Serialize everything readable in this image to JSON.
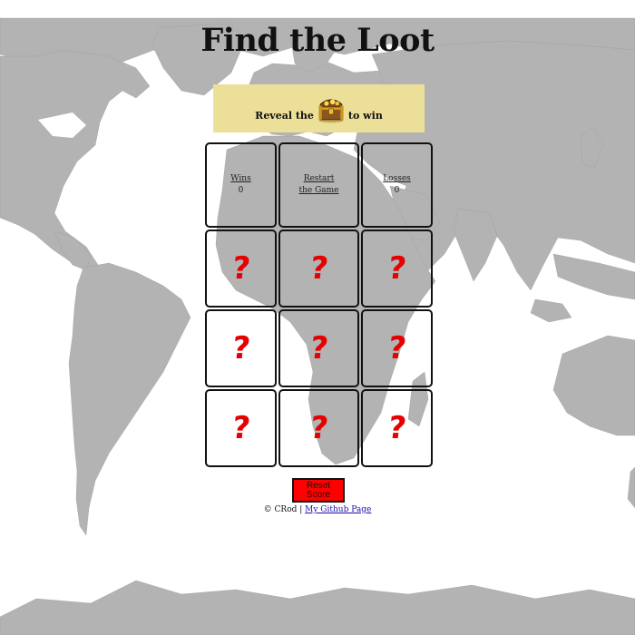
{
  "game": {
    "title": "Find the Loot",
    "instruction_before": "Reveal the",
    "instruction_after": "to win",
    "prize_icon": "treasure-chest-icon",
    "door_icon": "question-mark-icon",
    "door_symbol": "?",
    "door_color": "#e60000"
  },
  "scoreboard": {
    "wins_label": "Wins",
    "wins_value": "0",
    "restart_line1": "Restart",
    "restart_line2": "the Game",
    "losses_label": "Losses",
    "losses_value": "0"
  },
  "controls": {
    "reset_label": "Reset Score",
    "reset_color": "#ff0000"
  },
  "footer": {
    "credit": "© CRod | ",
    "link_text": "My Github Page"
  },
  "colors": {
    "instruction_bg": "#ece099",
    "map_land": "#b3b3b3"
  }
}
